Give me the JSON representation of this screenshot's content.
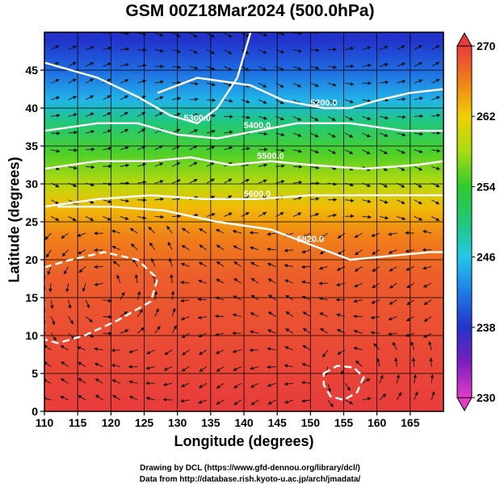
{
  "chart_data": {
    "type": "heatmap",
    "title": "GSM 00Z18Mar2024 (500.0hPa)",
    "xlabel": "Longitude (degrees)",
    "ylabel": "Latitude  (degrees)",
    "xlim": [
      110,
      170
    ],
    "ylim": [
      0,
      50
    ],
    "xticks": [
      110,
      115,
      120,
      125,
      130,
      135,
      140,
      145,
      150,
      155,
      160,
      165
    ],
    "yticks": [
      0,
      5,
      10,
      15,
      20,
      25,
      30,
      35,
      40,
      45
    ],
    "grid": true,
    "colorbar": {
      "placement": "right",
      "min": 230,
      "max": 270,
      "ticks": [
        230,
        238,
        246,
        254,
        262,
        270
      ],
      "stops": [
        {
          "value": 230,
          "color": "#e43cc8"
        },
        {
          "value": 234,
          "color": "#7a1fc0"
        },
        {
          "value": 238,
          "color": "#2233cc"
        },
        {
          "value": 242,
          "color": "#1e7ce8"
        },
        {
          "value": 246,
          "color": "#22c8e8"
        },
        {
          "value": 250,
          "color": "#20c878"
        },
        {
          "value": 254,
          "color": "#2ecc2e"
        },
        {
          "value": 258,
          "color": "#a8dc10"
        },
        {
          "value": 262,
          "color": "#f0d000"
        },
        {
          "value": 266,
          "color": "#f08018"
        },
        {
          "value": 270,
          "color": "#e83c3c"
        }
      ]
    },
    "temperature_bands": [
      {
        "lat": 49,
        "value": 238
      },
      {
        "lat": 45,
        "value": 241
      },
      {
        "lat": 41,
        "value": 245
      },
      {
        "lat": 38,
        "value": 250
      },
      {
        "lat": 34,
        "value": 255
      },
      {
        "lat": 30,
        "value": 259
      },
      {
        "lat": 27,
        "value": 263
      },
      {
        "lat": 23,
        "value": 266
      },
      {
        "lat": 18,
        "value": 268
      },
      {
        "lat": 10,
        "value": 269
      },
      {
        "lat": 0,
        "value": 270
      }
    ],
    "contours": [
      {
        "label": "5300.0",
        "points": [
          [
            110,
            46
          ],
          [
            118,
            44
          ],
          [
            124,
            41.5
          ],
          [
            129,
            39
          ],
          [
            133,
            38
          ],
          [
            136,
            40
          ],
          [
            139,
            44
          ],
          [
            141,
            50
          ]
        ]
      },
      {
        "label": "5200.0",
        "points": [
          [
            127,
            42
          ],
          [
            133,
            44
          ],
          [
            141,
            43
          ],
          [
            146,
            41
          ],
          [
            152,
            40
          ],
          [
            156,
            40
          ],
          [
            160,
            41
          ],
          [
            165,
            42
          ],
          [
            170,
            42.5
          ]
        ]
      },
      {
        "label": "5400.0",
        "points": [
          [
            110,
            37
          ],
          [
            118,
            38
          ],
          [
            124,
            38
          ],
          [
            130,
            36.5
          ],
          [
            136,
            36
          ],
          [
            142,
            37
          ],
          [
            148,
            38
          ],
          [
            156,
            38
          ],
          [
            164,
            37
          ],
          [
            170,
            37
          ]
        ]
      },
      {
        "label": "5500.0",
        "points": [
          [
            110,
            32
          ],
          [
            118,
            33
          ],
          [
            126,
            33
          ],
          [
            132,
            33.5
          ],
          [
            138,
            32.5
          ],
          [
            144,
            33
          ],
          [
            150,
            32.5
          ],
          [
            158,
            32
          ],
          [
            166,
            32.5
          ],
          [
            170,
            33
          ]
        ]
      },
      {
        "label": "5600.0",
        "points": [
          [
            110,
            27
          ],
          [
            118,
            28
          ],
          [
            126,
            28.5
          ],
          [
            134,
            28
          ],
          [
            142,
            28
          ],
          [
            150,
            28.5
          ],
          [
            158,
            28.5
          ],
          [
            166,
            28.5
          ],
          [
            170,
            28.5
          ]
        ]
      },
      {
        "label": "5820.0",
        "points": [
          [
            112,
            27
          ],
          [
            120,
            27
          ],
          [
            128,
            26.5
          ],
          [
            136,
            25
          ],
          [
            144,
            24
          ],
          [
            150,
            22
          ],
          [
            156,
            20
          ],
          [
            162,
            20.5
          ],
          [
            168,
            21
          ],
          [
            170,
            21
          ]
        ]
      }
    ],
    "closed_contours": [
      {
        "points": [
          [
            110,
            19
          ],
          [
            114,
            20
          ],
          [
            119,
            21
          ],
          [
            124,
            20
          ],
          [
            127,
            17.5
          ],
          [
            126,
            14.5
          ],
          [
            121,
            12
          ],
          [
            116,
            10
          ],
          [
            112,
            9
          ],
          [
            110,
            9.5
          ]
        ]
      },
      {
        "points": [
          [
            152,
            5
          ],
          [
            154,
            6
          ],
          [
            156.5,
            5.8
          ],
          [
            158,
            4.5
          ],
          [
            157,
            2.5
          ],
          [
            155,
            1.5
          ],
          [
            153,
            2
          ],
          [
            152,
            3.5
          ]
        ]
      }
    ]
  }
}
